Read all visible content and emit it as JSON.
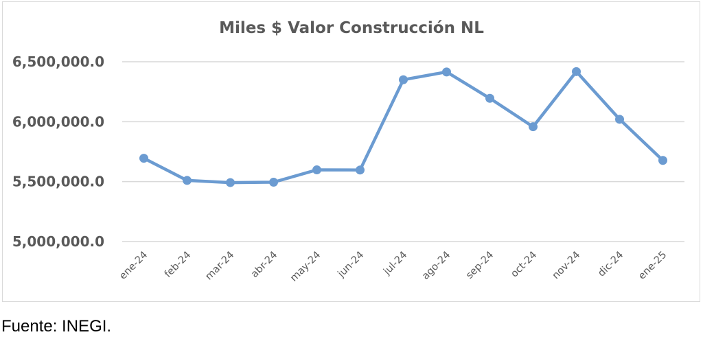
{
  "chart_data": {
    "type": "line",
    "title": "Miles $ Valor Construcción NL",
    "xlabel": "",
    "ylabel": "",
    "categories": [
      "ene-24",
      "feb-24",
      "mar-24",
      "abr-24",
      "may-24",
      "jun-24",
      "jul-24",
      "ago-24",
      "sep-24",
      "oct-24",
      "nov-24",
      "dic-24",
      "ene-25"
    ],
    "series": [
      {
        "values": [
          5695000,
          5510000,
          5492000,
          5495000,
          5598000,
          5597000,
          6350000,
          6415000,
          6195000,
          5958000,
          6418000,
          6020000,
          5677000
        ]
      }
    ],
    "ylim": [
      5000000,
      6500000
    ],
    "yticks": [
      5000000,
      5500000,
      6000000,
      6500000
    ],
    "ytick_labels": [
      "5,000,000.0",
      "5,500,000.0",
      "6,000,000.0",
      "6,500,000.0"
    ],
    "grid": true,
    "legend": "none",
    "line_color": "#6b9bd1",
    "grid_color": "#d9d9d9"
  },
  "footer": {
    "source": "Fuente: INEGI."
  }
}
